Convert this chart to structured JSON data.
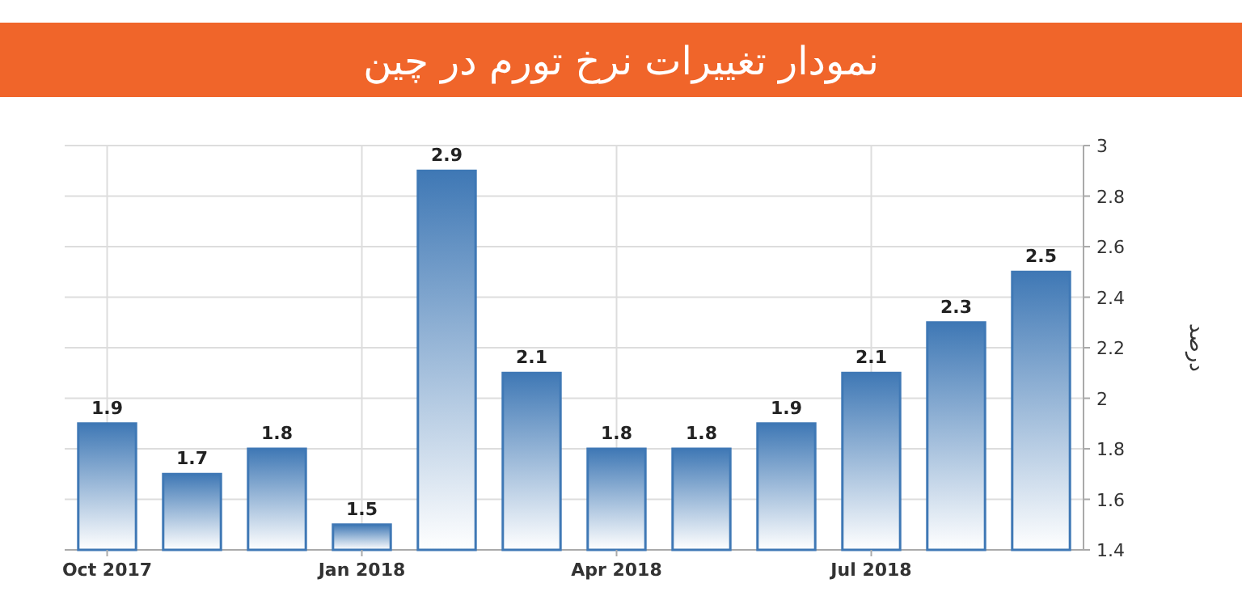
{
  "chart_data": {
    "type": "bar",
    "title": "نمودار تغییرات نرخ تورم در چین",
    "ylabel": "درصد",
    "categories": [
      "Oct 2017",
      null,
      null,
      "Jan 2018",
      null,
      null,
      "Apr 2018",
      null,
      null,
      "Jul 2018",
      null,
      null
    ],
    "values": [
      1.9,
      1.7,
      1.8,
      1.5,
      2.9,
      2.1,
      1.8,
      1.8,
      1.9,
      2.1,
      2.3,
      2.5
    ],
    "color": "#3f78b5",
    "ylim": [
      1.4,
      3
    ],
    "yticks": [
      1.4,
      1.6,
      1.8,
      2,
      2.2,
      2.4,
      2.6,
      2.8,
      3
    ],
    "grid": true,
    "data_labels": true
  }
}
